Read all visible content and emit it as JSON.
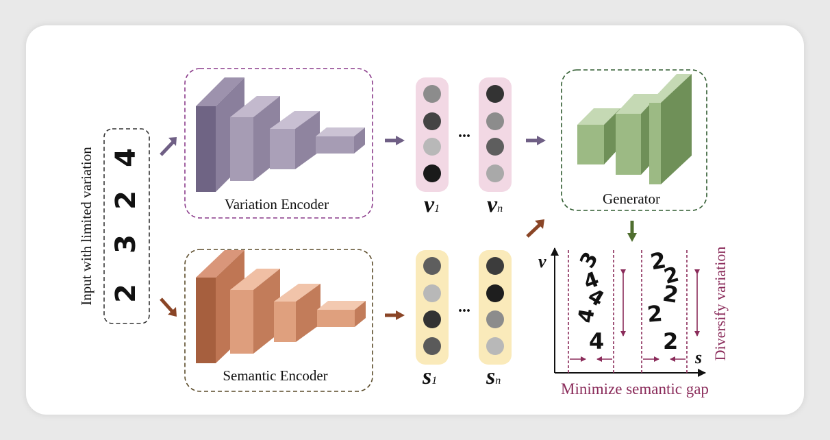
{
  "input": {
    "label": "Input with limited variation",
    "digits": [
      "4",
      "2",
      "3",
      "2"
    ]
  },
  "variation_encoder": {
    "label": "Variation Encoder"
  },
  "semantic_encoder": {
    "label": "Semantic Encoder"
  },
  "generator": {
    "label": "Generator"
  },
  "variation_vectors": {
    "first": {
      "base": "v",
      "sub": "1"
    },
    "last": {
      "base": "v",
      "sub": "n"
    },
    "ellipsis": "..."
  },
  "semantic_vectors": {
    "first": {
      "base": "s",
      "sub": "1"
    },
    "last": {
      "base": "s",
      "sub": "n"
    },
    "ellipsis": "..."
  },
  "output_plot": {
    "axis_y": "v",
    "axis_x": "s",
    "left_digits": [
      "3",
      "4",
      "4",
      "4",
      "4"
    ],
    "right_digits": [
      "2",
      "2",
      "2",
      "2",
      "2"
    ],
    "diversify_label": "Diversify variation",
    "minimize_label": "Minimize semantic gap"
  },
  "colors": {
    "variation": "#7d6f8f",
    "semantic": "#b8704a",
    "generator": "#7ea46a",
    "accent": "#8a2b5a",
    "v_column_bg": "#f2d8e4",
    "s_column_bg": "#faeaba"
  }
}
